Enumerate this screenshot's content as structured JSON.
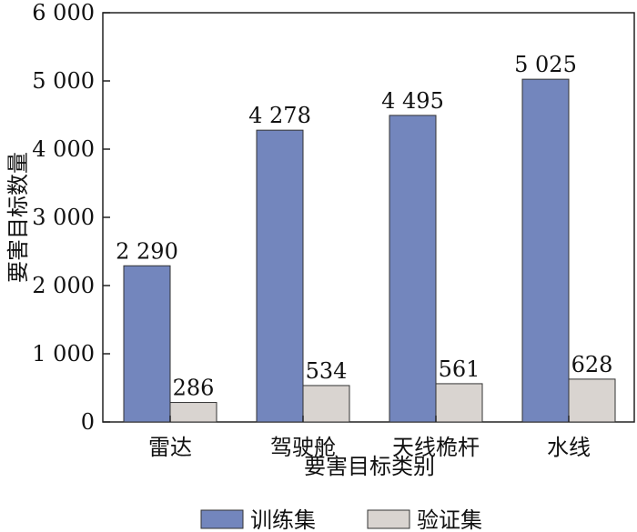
{
  "chart_data": {
    "type": "bar",
    "categories": [
      "雷达",
      "驾驶舱",
      "天线桅杆",
      "水线"
    ],
    "series": [
      {
        "name": "训练集",
        "values": [
          2290,
          4278,
          4495,
          5025
        ],
        "labels": [
          "2 290",
          "4 278",
          "4 495",
          "5 025"
        ],
        "color": "#7386bd"
      },
      {
        "name": "验证集",
        "values": [
          286,
          534,
          561,
          628
        ],
        "labels": [
          "286",
          "534",
          "561",
          "628"
        ],
        "color": "#d9d4d0"
      }
    ],
    "xlabel": "要害目标类别",
    "ylabel": "要害目标数量",
    "ylim": [
      0,
      6000
    ],
    "yticks": [
      0,
      1000,
      2000,
      3000,
      4000,
      5000,
      6000
    ],
    "ytick_labels": [
      "0",
      "1 000",
      "2 000",
      "3 000",
      "4 000",
      "5 000",
      "6 000"
    ],
    "grid": false,
    "legend_position": "bottom"
  }
}
